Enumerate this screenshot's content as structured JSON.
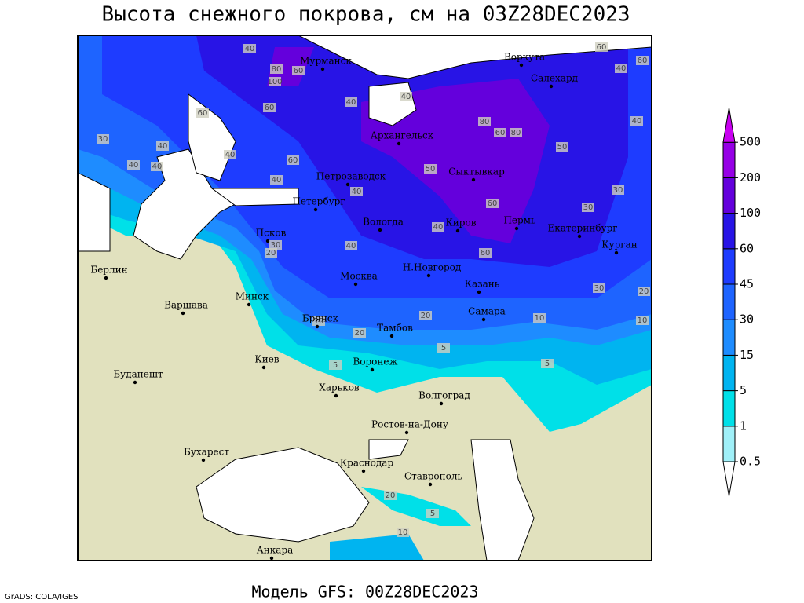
{
  "header": {
    "title": "Высота снежного покрова, см на 03Z28DEC2023"
  },
  "cities": [
    "Мурманск",
    "Воркута",
    "Салехард",
    "Архангельск",
    "Петрозаводск",
    "Сыктывкар",
    "Петербург",
    "Вологда",
    "Киров",
    "Пермь",
    "Екатеринбург",
    "Псков",
    "Курган",
    "Н.Новгород",
    "Берлин",
    "Казань",
    "Москва",
    "Минск",
    "Варшава",
    "Самара",
    "Брянск",
    "Тамбов",
    "Киев",
    "Воронеж",
    "Харьков",
    "Будапешт",
    "Волгоград",
    "Ростов-на-Дону",
    "Бухарест",
    "Краснодар",
    "Ставрополь",
    "Анкара"
  ],
  "contour_labels": [
    40,
    80,
    100,
    60,
    60,
    60,
    30,
    40,
    40,
    40,
    40,
    40,
    80,
    60,
    80,
    50,
    60,
    40,
    60,
    40,
    50,
    60,
    40,
    40,
    40,
    30,
    30,
    60,
    30,
    20,
    40,
    40,
    60,
    30,
    20,
    10,
    20,
    5,
    20,
    5,
    5,
    10,
    20,
    5,
    10,
    10
  ],
  "legend": {
    "ticks": [
      0.5,
      1,
      5,
      15,
      30,
      45,
      60,
      100,
      200,
      500
    ],
    "colors": [
      "#ffffff",
      "#a0f0f8",
      "#00e0e8",
      "#00b4f0",
      "#1e8cff",
      "#1e64ff",
      "#1e3cff",
      "#2814e6",
      "#6400dc",
      "#9600e6",
      "#c800f0"
    ]
  },
  "footer": {
    "model": "Модель GFS: 00Z28DEC2023",
    "credit": "GrADS: COLA/IGES"
  }
}
